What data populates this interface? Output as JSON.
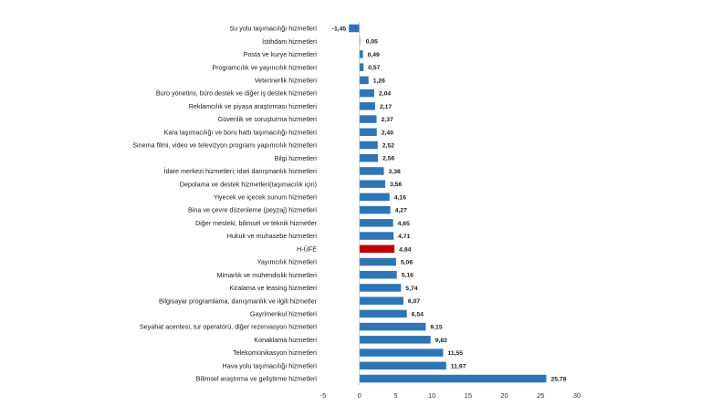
{
  "colors": {
    "bar": "#2e75b6",
    "highlight": "#c00000",
    "axis": "#bfbfbf",
    "background": "#ffffff"
  },
  "chart_data": {
    "type": "bar",
    "orientation": "horizontal",
    "title": "",
    "xlabel": "",
    "ylabel": "",
    "xlim": [
      -5,
      30
    ],
    "x_ticks": [
      "-5",
      "0",
      "5",
      "10",
      "15",
      "20",
      "25",
      "30"
    ],
    "grid": false,
    "highlight_category": "H-ÜFE",
    "categories": [
      "Su yolu taşımacılığı hizmetleri",
      "İstihdam hizmetleri",
      "Posta ve kurye hizmetleri",
      "Programcılık ve yayıncılık hizmetleri",
      "Veterinerlik hizmetleri",
      "Büro yönetimi, büro destek ve diğer iş destek hizmetleri",
      "Reklamcılık ve piyasa araştırması hizmetleri",
      "Güvenlik ve soruşturma hizmetleri",
      "Kara taşımacılığı ve boru hattı taşımacılığı hizmetleri",
      "Sinema filmi, video ve televizyon programı yapımcılık hizmetleri",
      "Bilgi hizmetleri",
      "İdare merkezi hizmetleri; idari danışmanlık hizmetleri",
      "Depolama ve destek hizmetleri(taşımacılık için)",
      "Yiyecek ve içecek sunum hizmetleri",
      "Bina ve çevre düzenleme (peyzaj) hizmetleri",
      "Diğer mesleki, bilimsel ve teknik hizmetler",
      "Hukuk ve muhasebe hizmetleri",
      "H-ÜFE",
      "Yayımcılık hizmetleri",
      "Mimarlık ve mühendislik hizmetleri",
      "Kiralama ve leasing hizmetleri",
      "Bilgisayar programlama, danışmanlık ve ilgili hizmetler",
      "Gayrimenkul hizmetleri",
      "Seyahat acentesi, tur operatörü, diğer rezervasyon hizmetleri",
      "Konaklama hizmetleri",
      "Telekomünikasyon hizmetleri",
      "Hava yolu taşımacılığı hizmetleri",
      "Bilimsel araştırma ve geliştirme hizmetleri"
    ],
    "values": [
      -1.45,
      0.05,
      0.49,
      0.57,
      1.26,
      2.04,
      2.17,
      2.37,
      2.4,
      2.52,
      2.56,
      3.38,
      3.56,
      4.16,
      4.27,
      4.65,
      4.71,
      4.84,
      5.06,
      5.16,
      5.74,
      6.07,
      6.54,
      9.15,
      9.82,
      11.55,
      11.97,
      25.78
    ],
    "value_labels": [
      "-1,45",
      "0,05",
      "0,49",
      "0,57",
      "1,26",
      "2,04",
      "2,17",
      "2,37",
      "2,40",
      "2,52",
      "2,56",
      "3,38",
      "3,56",
      "4,16",
      "4,27",
      "4,65",
      "4,71",
      "4,84",
      "5,06",
      "5,16",
      "5,74",
      "6,07",
      "6,54",
      "9,15",
      "9,82",
      "11,55",
      "11,97",
      "25,78"
    ]
  }
}
